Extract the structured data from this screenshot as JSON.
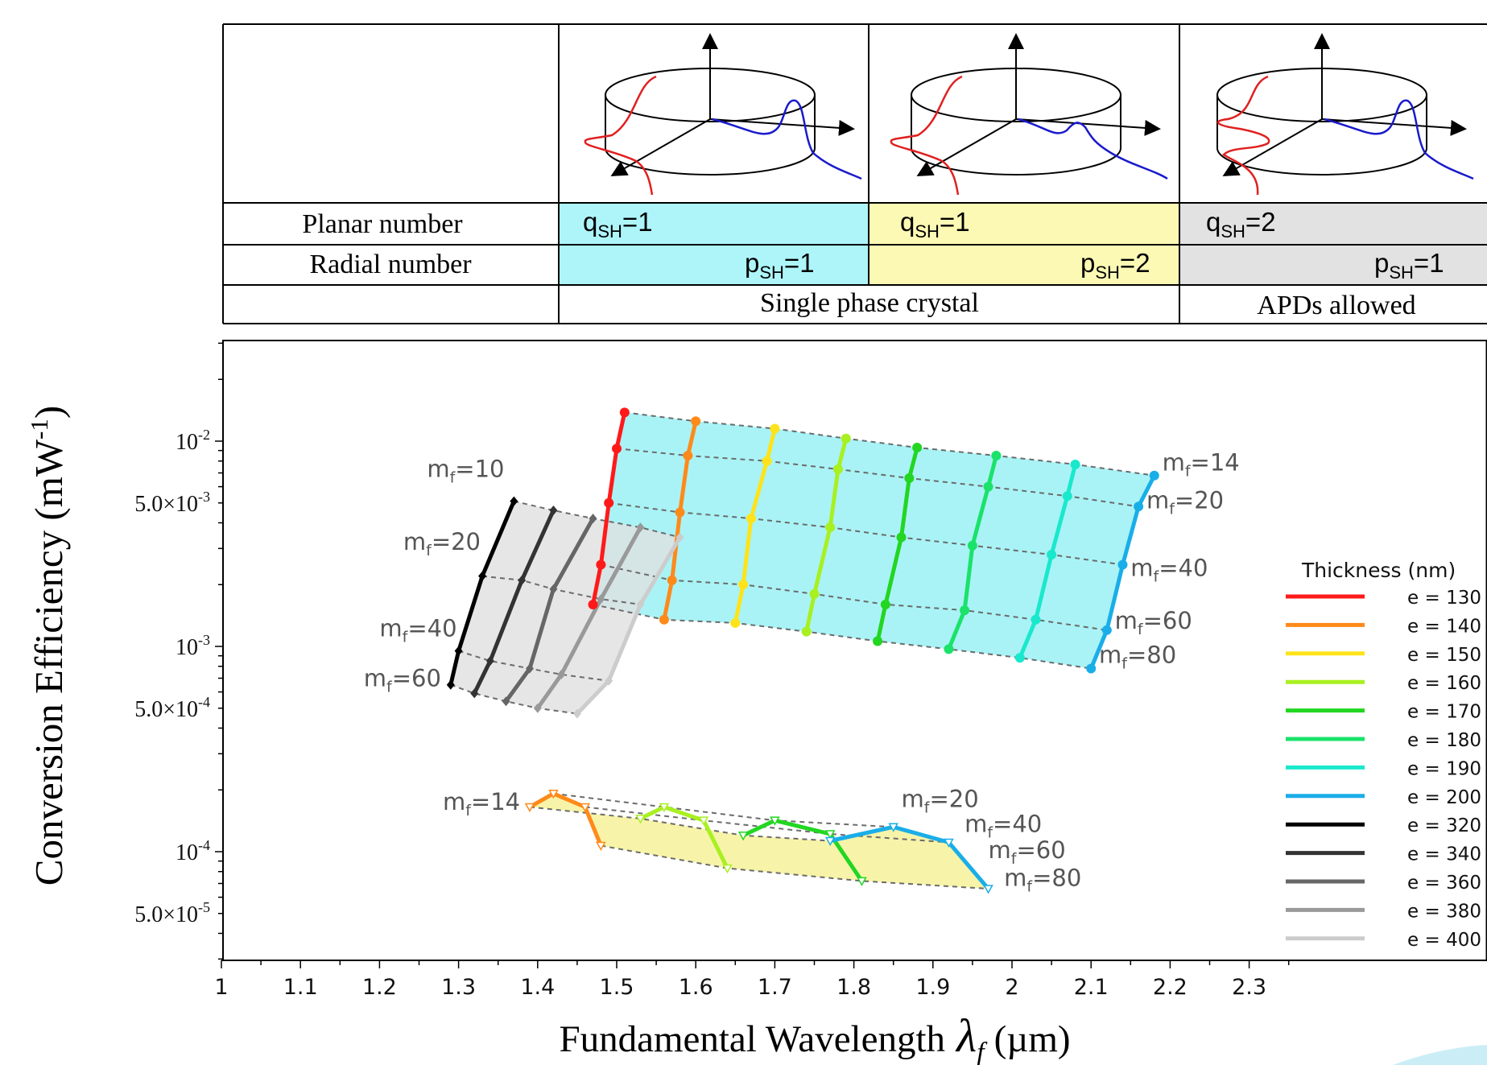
{
  "mode_table": {
    "row_labels": {
      "planar": "Planar number",
      "radial": "Radial number"
    },
    "columns": [
      {
        "planar": {
          "main": "q",
          "sub": "SH",
          "rest": "=1"
        },
        "radial": {
          "main": "p",
          "sub": "SH",
          "rest": "=1"
        },
        "fill": "#aef5fa"
      },
      {
        "planar": {
          "main": "q",
          "sub": "SH",
          "rest": "=1"
        },
        "radial": {
          "main": "p",
          "sub": "SH",
          "rest": "=2"
        },
        "fill": "#fcf9b4"
      },
      {
        "planar": {
          "main": "q",
          "sub": "SH",
          "rest": "=2"
        },
        "radial": {
          "main": "p",
          "sub": "SH",
          "rest": "=1"
        },
        "fill": "#e2e2e2"
      }
    ],
    "footer": {
      "single_phase": "Single phase crystal",
      "apds": "APDs allowed"
    }
  },
  "chart_data": {
    "type": "line",
    "y_scale": "log",
    "xlim": [
      1.0,
      2.35
    ],
    "ylim": [
      2.5e-05,
      0.035
    ],
    "x_ticks": [
      "1",
      "1.1",
      "1.2",
      "1.3",
      "1.4",
      "1.5",
      "1.6",
      "1.7",
      "1.8",
      "1.9",
      "2",
      "2.1",
      "2.2",
      "2.3"
    ],
    "x_tick_values": [
      1.0,
      1.1,
      1.2,
      1.3,
      1.4,
      1.5,
      1.6,
      1.7,
      1.8,
      1.9,
      2.0,
      2.1,
      2.2,
      2.3
    ],
    "y_ticks": [
      {
        "value": 0.01,
        "base": "10",
        "exp": "-2"
      },
      {
        "value": 0.005,
        "base": "5.0×10",
        "exp": "-3"
      },
      {
        "value": 0.001,
        "base": "10",
        "exp": "-3"
      },
      {
        "value": 0.0005,
        "base": "5.0×10",
        "exp": "-4"
      },
      {
        "value": 0.0001,
        "base": "10",
        "exp": "-4"
      },
      {
        "value": 5e-05,
        "base": "5.0×10",
        "exp": "-5"
      }
    ],
    "xlabel": {
      "text": "Fundamental Wavelength",
      "symbol": "λ",
      "symbol_sub": "f",
      "unit": "(µm)"
    },
    "ylabel": {
      "text": "Conversion Efficiency (mW",
      "exp": "-1",
      "close": ")"
    },
    "legend": {
      "title": "Thickness (nm)",
      "placement": "right",
      "entries": [
        {
          "label": "e = 130",
          "color": "#ff1a1a"
        },
        {
          "label": "e = 140",
          "color": "#ff8a1a"
        },
        {
          "label": "e = 150",
          "color": "#ffe31a"
        },
        {
          "label": "e = 160",
          "color": "#a8f020"
        },
        {
          "label": "e = 170",
          "color": "#22d622"
        },
        {
          "label": "e = 180",
          "color": "#1ae26a"
        },
        {
          "label": "e = 190",
          "color": "#1ae8cc"
        },
        {
          "label": "e = 200",
          "color": "#1aaee8"
        },
        {
          "label": "e = 320",
          "color": "#000000"
        },
        {
          "label": "e = 340",
          "color": "#333333"
        },
        {
          "label": "e = 360",
          "color": "#666666"
        },
        {
          "label": "e = 380",
          "color": "#999999"
        },
        {
          "label": "e = 400",
          "color": "#cccccc"
        }
      ]
    },
    "groups": [
      {
        "name": "cyan",
        "fill": "#a4f2f6",
        "marker": "circle",
        "curves": [
          {
            "color": "#ff1a1a",
            "points": [
              [
                1.51,
                0.0138
              ],
              [
                1.5,
                0.0092
              ],
              [
                1.49,
                0.005
              ],
              [
                1.48,
                0.0025
              ],
              [
                1.47,
                0.0016
              ]
            ]
          },
          {
            "color": "#ff8a1a",
            "points": [
              [
                1.6,
                0.0125
              ],
              [
                1.59,
                0.0085
              ],
              [
                1.58,
                0.0045
              ],
              [
                1.57,
                0.0021
              ],
              [
                1.56,
                0.00135
              ]
            ]
          },
          {
            "color": "#ffe31a",
            "points": [
              [
                1.7,
                0.0115
              ],
              [
                1.69,
                0.008
              ],
              [
                1.67,
                0.0042
              ],
              [
                1.66,
                0.002
              ],
              [
                1.65,
                0.0013
              ]
            ]
          },
          {
            "color": "#a8f020",
            "points": [
              [
                1.79,
                0.0103
              ],
              [
                1.78,
                0.0073
              ],
              [
                1.77,
                0.0038
              ],
              [
                1.75,
                0.0018
              ],
              [
                1.74,
                0.00118
              ]
            ]
          },
          {
            "color": "#22d622",
            "points": [
              [
                1.88,
                0.0093
              ],
              [
                1.87,
                0.0066
              ],
              [
                1.86,
                0.0034
              ],
              [
                1.84,
                0.0016
              ],
              [
                1.83,
                0.00106
              ]
            ]
          },
          {
            "color": "#1ae26a",
            "points": [
              [
                1.98,
                0.0085
              ],
              [
                1.97,
                0.006
              ],
              [
                1.95,
                0.0031
              ],
              [
                1.94,
                0.0015
              ],
              [
                1.92,
                0.00097
              ]
            ]
          },
          {
            "color": "#1ae8cc",
            "points": [
              [
                2.08,
                0.0077
              ],
              [
                2.07,
                0.0054
              ],
              [
                2.05,
                0.0028
              ],
              [
                2.03,
                0.00135
              ],
              [
                2.01,
                0.00088
              ]
            ]
          },
          {
            "color": "#1aaee8",
            "points": [
              [
                2.18,
                0.0068
              ],
              [
                2.16,
                0.0048
              ],
              [
                2.14,
                0.0025
              ],
              [
                2.12,
                0.0012
              ],
              [
                2.1,
                0.00078
              ]
            ]
          }
        ]
      },
      {
        "name": "gray",
        "fill": "#e0e0e0",
        "marker": "diamond",
        "curves": [
          {
            "color": "#000000",
            "points": [
              [
                1.37,
                0.0051
              ],
              [
                1.33,
                0.0022
              ],
              [
                1.3,
                0.00095
              ],
              [
                1.29,
                0.00065
              ]
            ]
          },
          {
            "color": "#333333",
            "points": [
              [
                1.42,
                0.0046
              ],
              [
                1.38,
                0.0021
              ],
              [
                1.34,
                0.00085
              ],
              [
                1.32,
                0.00059
              ]
            ]
          },
          {
            "color": "#666666",
            "points": [
              [
                1.47,
                0.0042
              ],
              [
                1.42,
                0.0019
              ],
              [
                1.39,
                0.00078
              ],
              [
                1.36,
                0.00054
              ]
            ]
          },
          {
            "color": "#999999",
            "points": [
              [
                1.53,
                0.0038
              ],
              [
                1.48,
                0.0017
              ],
              [
                1.43,
                0.00073
              ],
              [
                1.4,
                0.0005
              ]
            ]
          },
          {
            "color": "#cccccc",
            "points": [
              [
                1.58,
                0.0034
              ],
              [
                1.53,
                0.0016
              ],
              [
                1.49,
                0.00068
              ],
              [
                1.45,
                0.00047
              ]
            ]
          }
        ]
      },
      {
        "name": "yellow",
        "fill": "#f7f3a4",
        "marker": "triangle",
        "curves": [
          {
            "color": "#ff8a1a",
            "points": [
              [
                1.39,
                0.000165
              ],
              [
                1.42,
                0.000192
              ],
              [
                1.46,
                0.000165
              ],
              [
                1.48,
                0.000107
              ]
            ]
          },
          {
            "color": "#a8f020",
            "points": [
              [
                1.53,
                0.000145
              ],
              [
                1.56,
                0.000165
              ],
              [
                1.61,
                0.000142
              ],
              [
                1.64,
                8.3e-05
              ]
            ]
          },
          {
            "color": "#22d622",
            "points": [
              [
                1.66,
                0.00012
              ],
              [
                1.7,
                0.000142
              ],
              [
                1.77,
                0.000122
              ],
              [
                1.81,
                7.2e-05
              ]
            ]
          },
          {
            "color": "#1aaee8",
            "points": [
              [
                1.77,
                0.000113
              ],
              [
                1.85,
                0.000132
              ],
              [
                1.92,
                0.000111
              ],
              [
                1.97,
                6.6e-05
              ]
            ]
          }
        ]
      }
    ],
    "annotations": [
      {
        "main": "m",
        "sub": "f",
        "rest": "=10",
        "x": 1.26,
        "y": 0.0067
      },
      {
        "main": "m",
        "sub": "f",
        "rest": "=20",
        "x": 1.23,
        "y": 0.00295
      },
      {
        "main": "m",
        "sub": "f",
        "rest": "=40",
        "x": 1.2,
        "y": 0.00112
      },
      {
        "main": "m",
        "sub": "f",
        "rest": "=60",
        "x": 1.18,
        "y": 0.00064
      },
      {
        "main": "m",
        "sub": "f",
        "rest": "=14",
        "x": 2.19,
        "y": 0.0072
      },
      {
        "main": "m",
        "sub": "f",
        "rest": "=20",
        "x": 2.17,
        "y": 0.0047
      },
      {
        "main": "m",
        "sub": "f",
        "rest": "=40",
        "x": 2.15,
        "y": 0.0022
      },
      {
        "main": "m",
        "sub": "f",
        "rest": "=60",
        "x": 2.13,
        "y": 0.00122
      },
      {
        "main": "m",
        "sub": "f",
        "rest": "=80",
        "x": 2.11,
        "y": 0.00083
      },
      {
        "main": "m",
        "sub": "f",
        "rest": "=14",
        "x": 1.28,
        "y": 0.00016
      },
      {
        "main": "m",
        "sub": "f",
        "rest": "=20",
        "x": 1.86,
        "y": 0.000165
      },
      {
        "main": "m",
        "sub": "f",
        "rest": "=40",
        "x": 1.94,
        "y": 0.000125
      },
      {
        "main": "m",
        "sub": "f",
        "rest": "=60",
        "x": 1.97,
        "y": 9.3e-05
      },
      {
        "main": "m",
        "sub": "f",
        "rest": "=80",
        "x": 1.99,
        "y": 6.8e-05
      }
    ]
  }
}
